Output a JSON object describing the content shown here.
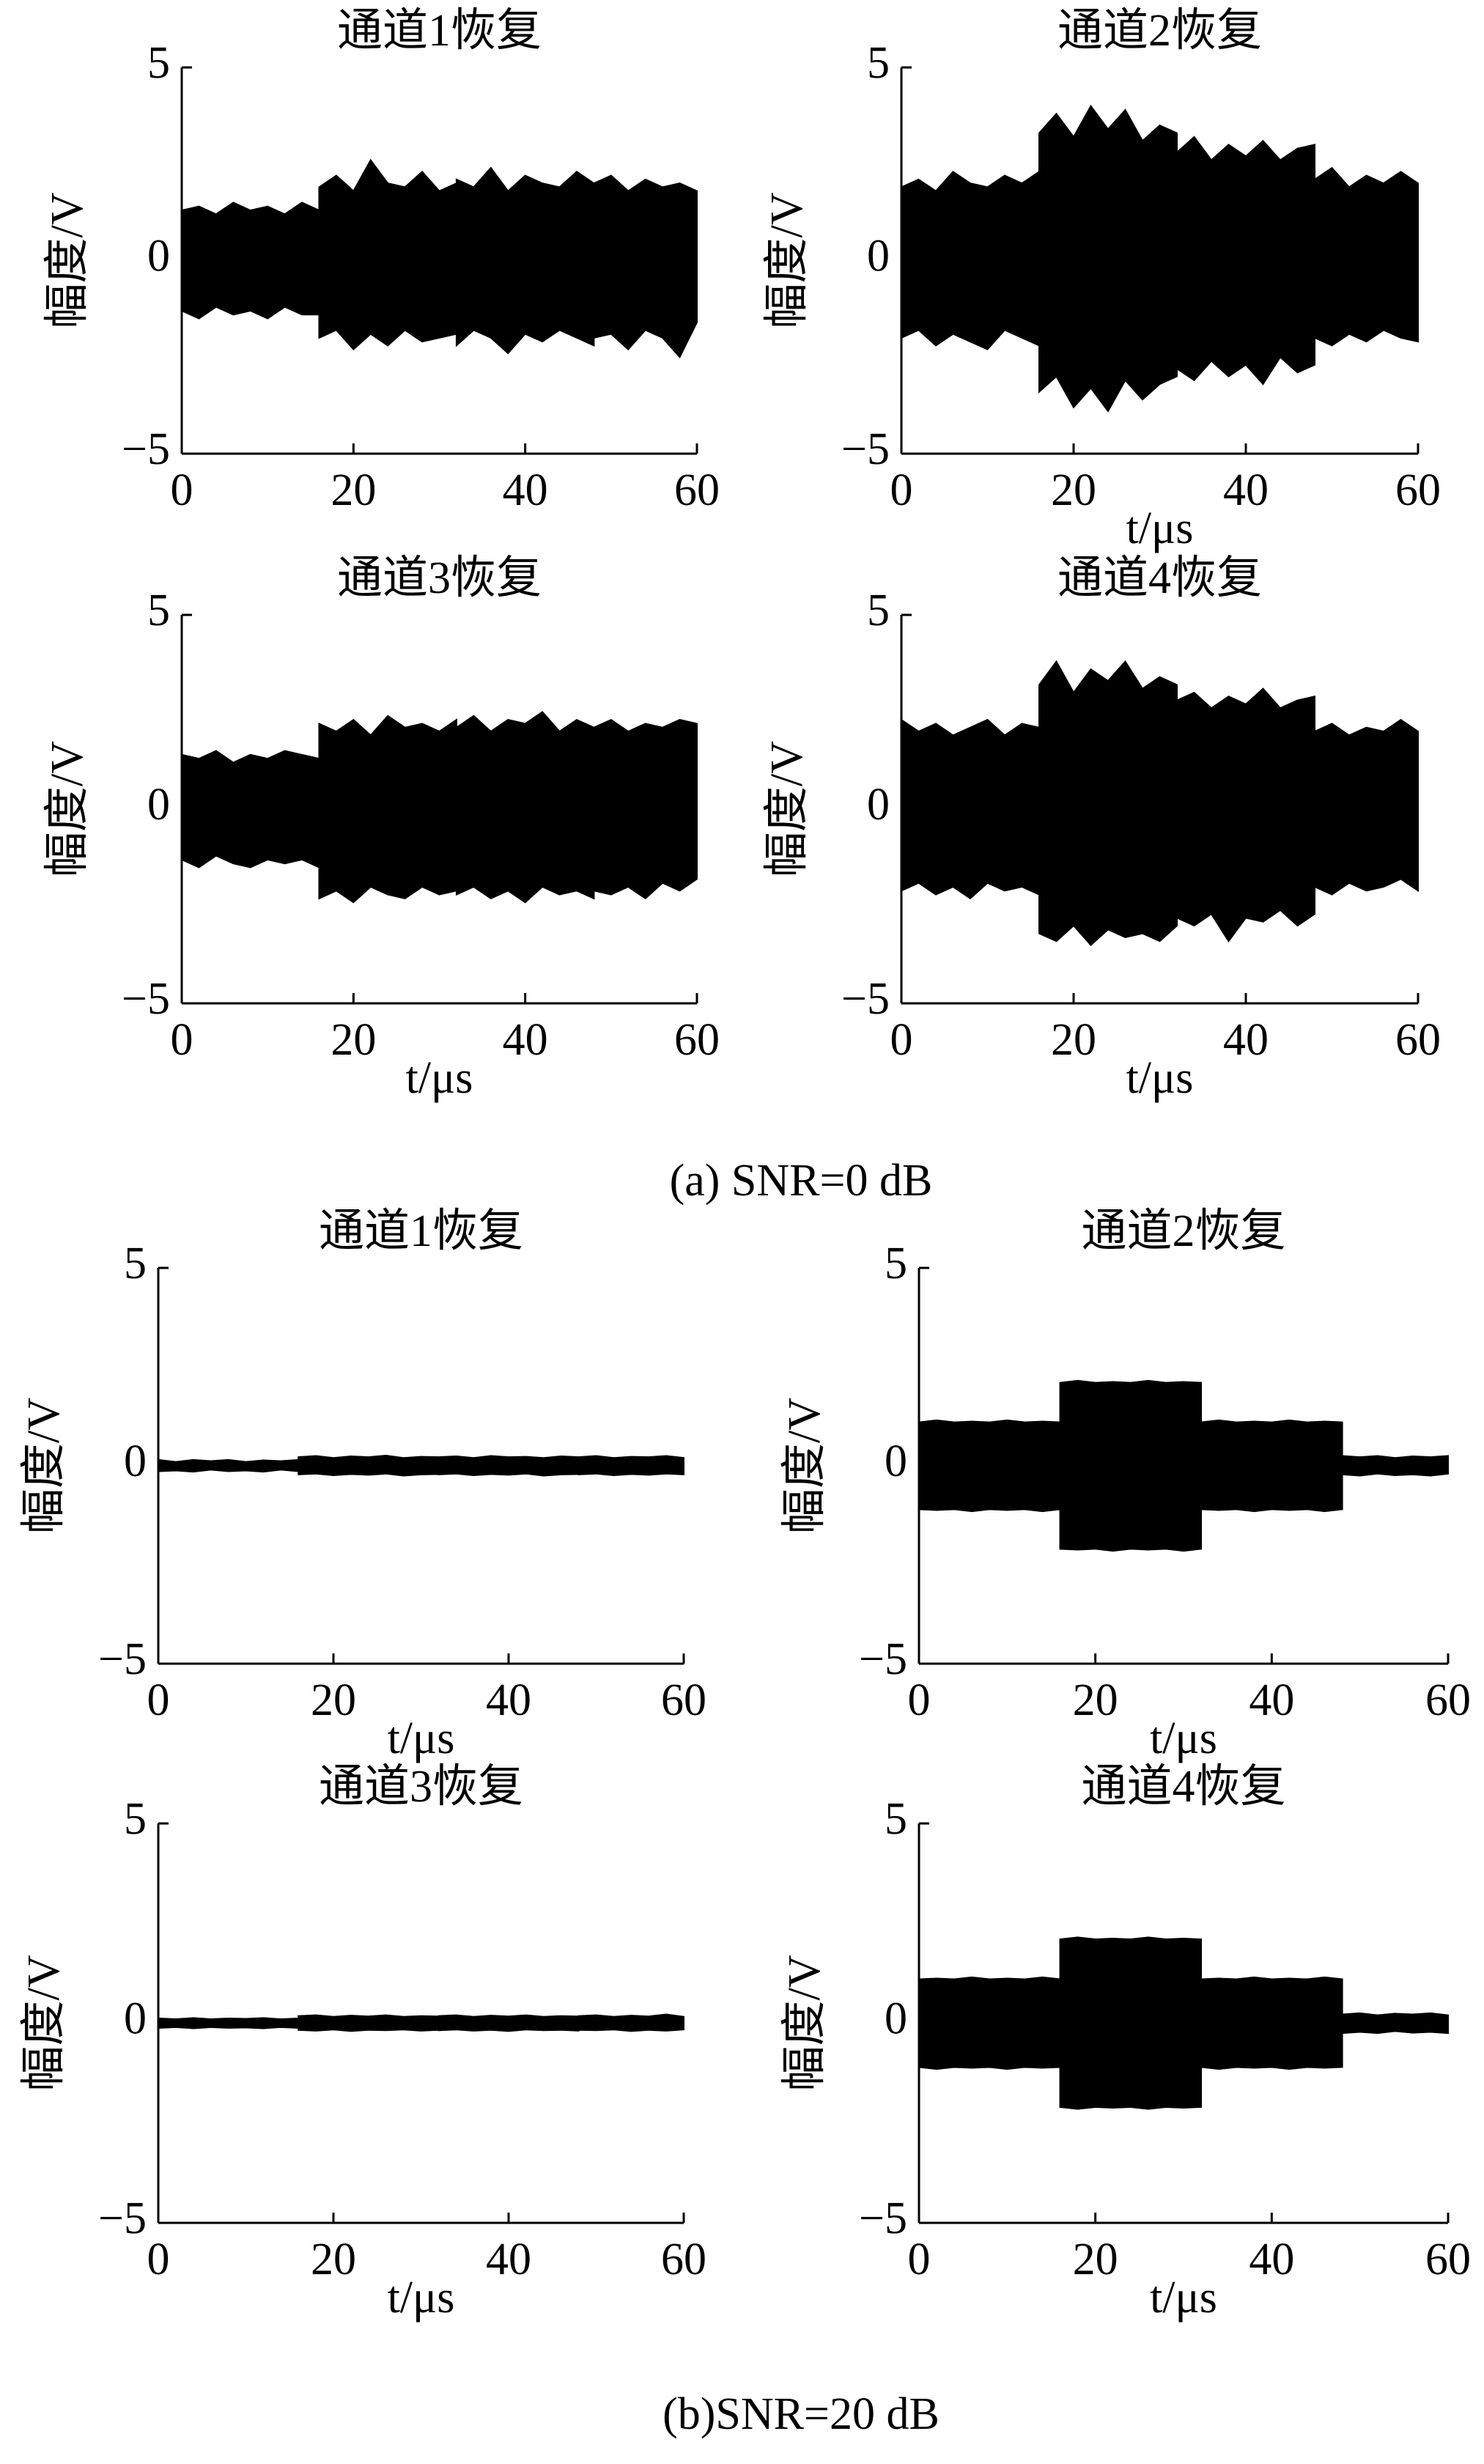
{
  "chart_data": [
    {
      "type": "area",
      "title": "通道1恢复",
      "ylabel": "幅度/V",
      "x": [
        0,
        2,
        4,
        6,
        8,
        10,
        12,
        14,
        16,
        16,
        18,
        20,
        22,
        24,
        26,
        28,
        30,
        32,
        32,
        34,
        36,
        38,
        40,
        42,
        44,
        46,
        48,
        48,
        50,
        52,
        54,
        56,
        58,
        60
      ],
      "series": [
        {
          "color": "#000000",
          "values": [
            1.3,
            1.4,
            1.2,
            1.5,
            1.3,
            1.4,
            1.2,
            1.5,
            1.3,
            1.9,
            2.2,
            1.8,
            2.6,
            2.0,
            1.9,
            2.3,
            1.8,
            2.0,
            2.1,
            1.9,
            2.4,
            1.8,
            2.2,
            2.0,
            1.9,
            2.3,
            2.0,
            2.0,
            2.2,
            1.8,
            2.1,
            1.9,
            2.0,
            1.8
          ]
        },
        {
          "color": "#000000",
          "values": [
            -1.3,
            -1.5,
            -1.2,
            -1.4,
            -1.3,
            -1.5,
            -1.2,
            -1.4,
            -1.4,
            -2.0,
            -1.8,
            -2.3,
            -1.9,
            -2.2,
            -1.8,
            -2.1,
            -2.0,
            -1.9,
            -2.2,
            -1.8,
            -2.0,
            -2.4,
            -1.9,
            -2.1,
            -1.8,
            -2.0,
            -2.2,
            -2.0,
            -1.9,
            -2.3,
            -1.8,
            -2.0,
            -2.5,
            -1.6
          ]
        }
      ],
      "xlim": [
        0,
        60
      ],
      "xticks": [
        0,
        20,
        40,
        60
      ],
      "ylim": [
        -5,
        5
      ],
      "yticks": [
        {
          "value": -5,
          "label": "−5"
        },
        0,
        5
      ]
    },
    {
      "type": "area",
      "title": "通道2恢复",
      "xlabel": "t/μs",
      "ylabel": "幅度/V",
      "x": [
        0,
        2,
        4,
        6,
        8,
        10,
        12,
        14,
        16,
        16,
        18,
        20,
        22,
        24,
        26,
        28,
        30,
        32,
        32,
        34,
        36,
        38,
        40,
        42,
        44,
        46,
        48,
        48,
        50,
        52,
        54,
        56,
        58,
        60
      ],
      "series": [
        {
          "color": "#000000",
          "values": [
            1.9,
            2.1,
            1.8,
            2.3,
            2.0,
            1.9,
            2.2,
            2.0,
            2.3,
            3.3,
            3.8,
            3.2,
            4.0,
            3.4,
            3.9,
            3.1,
            3.5,
            3.3,
            2.8,
            3.2,
            2.6,
            3.0,
            2.7,
            3.1,
            2.6,
            2.9,
            3.0,
            2.1,
            2.4,
            1.9,
            2.2,
            2.0,
            2.3,
            2.0
          ]
        },
        {
          "color": "#000000",
          "values": [
            -2.0,
            -1.8,
            -2.2,
            -1.9,
            -2.1,
            -2.3,
            -1.8,
            -2.0,
            -2.2,
            -3.4,
            -3.0,
            -3.8,
            -3.3,
            -3.9,
            -3.1,
            -3.6,
            -3.2,
            -3.0,
            -2.8,
            -3.1,
            -2.6,
            -3.0,
            -2.7,
            -3.2,
            -2.5,
            -2.9,
            -2.7,
            -2.0,
            -2.2,
            -1.9,
            -2.1,
            -1.8,
            -2.0,
            -2.1
          ]
        }
      ],
      "xlim": [
        0,
        60
      ],
      "xticks": [
        0,
        20,
        40,
        60
      ],
      "ylim": [
        -5,
        5
      ],
      "yticks": [
        {
          "value": -5,
          "label": "−5"
        },
        0,
        5
      ]
    },
    {
      "type": "area",
      "title": "通道3恢复",
      "xlabel": "t/μs",
      "ylabel": "幅度/V",
      "x": [
        0,
        2,
        4,
        6,
        8,
        10,
        12,
        14,
        16,
        16,
        18,
        20,
        22,
        24,
        26,
        28,
        30,
        32,
        32,
        34,
        36,
        38,
        40,
        42,
        44,
        46,
        48,
        48,
        50,
        52,
        54,
        56,
        58,
        60
      ],
      "series": [
        {
          "color": "#000000",
          "values": [
            1.4,
            1.3,
            1.5,
            1.2,
            1.4,
            1.3,
            1.5,
            1.4,
            1.3,
            2.2,
            2.0,
            2.3,
            1.9,
            2.4,
            2.1,
            2.2,
            2.0,
            2.3,
            2.1,
            2.4,
            2.0,
            2.3,
            2.2,
            2.5,
            2.0,
            2.3,
            2.1,
            2.1,
            2.3,
            2.0,
            2.2,
            2.1,
            2.3,
            2.2
          ]
        },
        {
          "color": "#000000",
          "values": [
            -1.3,
            -1.5,
            -1.2,
            -1.4,
            -1.5,
            -1.3,
            -1.4,
            -1.3,
            -1.5,
            -2.3,
            -2.1,
            -2.4,
            -2.0,
            -2.2,
            -2.3,
            -2.0,
            -2.2,
            -2.1,
            -2.2,
            -2.0,
            -2.3,
            -2.1,
            -2.4,
            -2.0,
            -2.2,
            -2.1,
            -2.3,
            -2.1,
            -2.2,
            -2.0,
            -2.3,
            -1.9,
            -2.1,
            -1.8
          ]
        }
      ],
      "xlim": [
        0,
        60
      ],
      "xticks": [
        0,
        20,
        40,
        60
      ],
      "ylim": [
        -5,
        5
      ],
      "yticks": [
        {
          "value": -5,
          "label": "−5"
        },
        0,
        5
      ]
    },
    {
      "type": "area",
      "title": "通道4恢复",
      "xlabel": "t/μs",
      "ylabel": "幅度/V",
      "x": [
        0,
        2,
        4,
        6,
        8,
        10,
        12,
        14,
        16,
        16,
        18,
        20,
        22,
        24,
        26,
        28,
        30,
        32,
        32,
        34,
        36,
        38,
        40,
        42,
        44,
        46,
        48,
        48,
        50,
        52,
        54,
        56,
        58,
        60
      ],
      "series": [
        {
          "color": "#000000",
          "values": [
            2.3,
            2.0,
            2.2,
            1.9,
            2.1,
            2.3,
            1.9,
            2.2,
            2.1,
            3.2,
            3.8,
            3.0,
            3.6,
            3.3,
            3.8,
            3.1,
            3.4,
            3.2,
            2.8,
            3.0,
            2.6,
            2.9,
            2.7,
            3.1,
            2.6,
            2.8,
            2.9,
            2.0,
            2.2,
            1.9,
            2.1,
            2.0,
            2.3,
            2.0
          ]
        },
        {
          "color": "#000000",
          "values": [
            -2.1,
            -1.9,
            -2.2,
            -2.0,
            -2.3,
            -1.9,
            -2.1,
            -2.0,
            -2.2,
            -3.2,
            -3.4,
            -3.0,
            -3.5,
            -3.1,
            -3.3,
            -3.2,
            -3.4,
            -3.0,
            -2.8,
            -3.0,
            -2.7,
            -3.4,
            -2.8,
            -2.9,
            -2.6,
            -3.0,
            -2.7,
            -2.0,
            -2.2,
            -1.9,
            -2.1,
            -2.0,
            -1.8,
            -2.1
          ]
        }
      ],
      "xlim": [
        0,
        60
      ],
      "xticks": [
        0,
        20,
        40,
        60
      ],
      "ylim": [
        -5,
        5
      ],
      "yticks": [
        {
          "value": -5,
          "label": "−5"
        },
        0,
        5
      ]
    },
    {
      "type": "area",
      "title": "通道1恢复",
      "xlabel": "t/μs",
      "ylabel": "幅度/V",
      "x": [
        0,
        2,
        4,
        6,
        8,
        10,
        12,
        14,
        16,
        16,
        18,
        20,
        22,
        24,
        26,
        28,
        30,
        32,
        32,
        34,
        36,
        38,
        40,
        42,
        44,
        46,
        48,
        48,
        50,
        52,
        54,
        56,
        58,
        60
      ],
      "series": [
        {
          "color": "#000000",
          "values": [
            0.15,
            0.1,
            0.15,
            0.12,
            0.15,
            0.1,
            0.14,
            0.12,
            0.15,
            0.22,
            0.25,
            0.2,
            0.24,
            0.22,
            0.26,
            0.2,
            0.23,
            0.22,
            0.22,
            0.24,
            0.2,
            0.25,
            0.22,
            0.23,
            0.2,
            0.24,
            0.22,
            0.22,
            0.25,
            0.2,
            0.23,
            0.22,
            0.25,
            0.2
          ]
        },
        {
          "color": "#000000",
          "values": [
            -0.14,
            -0.12,
            -0.15,
            -0.1,
            -0.14,
            -0.12,
            -0.15,
            -0.1,
            -0.14,
            -0.22,
            -0.2,
            -0.24,
            -0.21,
            -0.23,
            -0.2,
            -0.25,
            -0.22,
            -0.21,
            -0.22,
            -0.2,
            -0.24,
            -0.21,
            -0.23,
            -0.2,
            -0.25,
            -0.22,
            -0.21,
            -0.22,
            -0.2,
            -0.24,
            -0.21,
            -0.23,
            -0.2,
            -0.22
          ]
        }
      ],
      "xlim": [
        0,
        60
      ],
      "xticks": [
        0,
        20,
        40,
        60
      ],
      "ylim": [
        -5,
        5
      ],
      "yticks": [
        {
          "value": -5,
          "label": "−5"
        },
        0,
        5
      ]
    },
    {
      "type": "area",
      "title": "通道2恢复",
      "xlabel": "t/μs",
      "ylabel": "幅度/V",
      "x": [
        0,
        2,
        4,
        6,
        8,
        10,
        12,
        14,
        16,
        16,
        18,
        20,
        22,
        24,
        26,
        28,
        30,
        32,
        32,
        34,
        36,
        38,
        40,
        42,
        44,
        46,
        48,
        48,
        50,
        52,
        54,
        56,
        58,
        60
      ],
      "series": [
        {
          "color": "#000000",
          "values": [
            1.1,
            1.15,
            1.1,
            1.12,
            1.1,
            1.15,
            1.1,
            1.12,
            1.1,
            2.1,
            2.15,
            2.1,
            2.12,
            2.1,
            2.15,
            2.1,
            2.12,
            2.1,
            1.1,
            1.15,
            1.1,
            1.12,
            1.1,
            1.15,
            1.1,
            1.12,
            1.1,
            0.25,
            0.22,
            0.25,
            0.2,
            0.24,
            0.22,
            0.25
          ]
        },
        {
          "color": "#000000",
          "values": [
            -1.1,
            -1.12,
            -1.1,
            -1.15,
            -1.1,
            -1.12,
            -1.1,
            -1.15,
            -1.1,
            -2.1,
            -2.12,
            -2.1,
            -2.15,
            -2.1,
            -2.12,
            -2.1,
            -2.15,
            -2.1,
            -1.1,
            -1.12,
            -1.1,
            -1.15,
            -1.1,
            -1.12,
            -1.1,
            -1.15,
            -1.1,
            -0.22,
            -0.25,
            -0.2,
            -0.24,
            -0.22,
            -0.25,
            -0.2
          ]
        }
      ],
      "xlim": [
        0,
        60
      ],
      "xticks": [
        0,
        20,
        40,
        60
      ],
      "ylim": [
        -5,
        5
      ],
      "yticks": [
        {
          "value": -5,
          "label": "−5"
        },
        0,
        5
      ]
    },
    {
      "type": "area",
      "title": "通道3恢复",
      "xlabel": "t/μs",
      "ylabel": "幅度/V",
      "x": [
        0,
        2,
        4,
        6,
        8,
        10,
        12,
        14,
        16,
        16,
        18,
        20,
        22,
        24,
        26,
        28,
        30,
        32,
        32,
        34,
        36,
        38,
        40,
        42,
        44,
        46,
        48,
        48,
        50,
        52,
        54,
        56,
        58,
        60
      ],
      "series": [
        {
          "color": "#000000",
          "values": [
            0.12,
            0.1,
            0.13,
            0.1,
            0.12,
            0.11,
            0.13,
            0.1,
            0.12,
            0.18,
            0.2,
            0.16,
            0.19,
            0.17,
            0.2,
            0.16,
            0.18,
            0.17,
            0.18,
            0.2,
            0.16,
            0.19,
            0.17,
            0.2,
            0.16,
            0.18,
            0.17,
            0.18,
            0.2,
            0.16,
            0.19,
            0.17,
            0.22,
            0.16
          ]
        },
        {
          "color": "#000000",
          "values": [
            -0.12,
            -0.1,
            -0.13,
            -0.1,
            -0.12,
            -0.11,
            -0.13,
            -0.1,
            -0.12,
            -0.17,
            -0.19,
            -0.16,
            -0.2,
            -0.17,
            -0.18,
            -0.16,
            -0.19,
            -0.17,
            -0.18,
            -0.16,
            -0.19,
            -0.17,
            -0.2,
            -0.16,
            -0.18,
            -0.17,
            -0.19,
            -0.17,
            -0.18,
            -0.16,
            -0.2,
            -0.17,
            -0.19,
            -0.16
          ]
        }
      ],
      "xlim": [
        0,
        60
      ],
      "xticks": [
        0,
        20,
        40,
        60
      ],
      "ylim": [
        -5,
        5
      ],
      "yticks": [
        {
          "value": -5,
          "label": "−5"
        },
        0,
        5
      ]
    },
    {
      "type": "area",
      "title": "通道4恢复",
      "xlabel": "t/μs",
      "ylabel": "幅度/V",
      "x": [
        0,
        2,
        4,
        6,
        8,
        10,
        12,
        14,
        16,
        16,
        18,
        20,
        22,
        24,
        26,
        28,
        30,
        32,
        32,
        34,
        36,
        38,
        40,
        42,
        44,
        46,
        48,
        48,
        50,
        52,
        54,
        56,
        58,
        60
      ],
      "series": [
        {
          "color": "#000000",
          "values": [
            1.1,
            1.12,
            1.1,
            1.15,
            1.1,
            1.12,
            1.1,
            1.15,
            1.1,
            2.1,
            2.15,
            2.1,
            2.12,
            2.1,
            2.15,
            2.1,
            2.12,
            2.1,
            1.1,
            1.12,
            1.1,
            1.15,
            1.1,
            1.12,
            1.1,
            1.15,
            1.1,
            0.22,
            0.25,
            0.2,
            0.24,
            0.22,
            0.25,
            0.2
          ]
        },
        {
          "color": "#000000",
          "values": [
            -1.1,
            -1.15,
            -1.1,
            -1.12,
            -1.1,
            -1.15,
            -1.1,
            -1.12,
            -1.1,
            -2.1,
            -2.15,
            -2.1,
            -2.12,
            -2.1,
            -2.15,
            -2.1,
            -2.12,
            -2.1,
            -1.1,
            -1.15,
            -1.1,
            -1.12,
            -1.1,
            -1.15,
            -1.1,
            -1.12,
            -1.1,
            -0.25,
            -0.22,
            -0.25,
            -0.2,
            -0.24,
            -0.22,
            -0.25
          ]
        }
      ],
      "xlim": [
        0,
        60
      ],
      "xticks": [
        0,
        20,
        40,
        60
      ],
      "ylim": [
        -5,
        5
      ],
      "yticks": [
        {
          "value": -5,
          "label": "−5"
        },
        0,
        5
      ]
    }
  ],
  "captions": [
    "(a) SNR=0 dB",
    "(b)SNR=20 dB"
  ]
}
